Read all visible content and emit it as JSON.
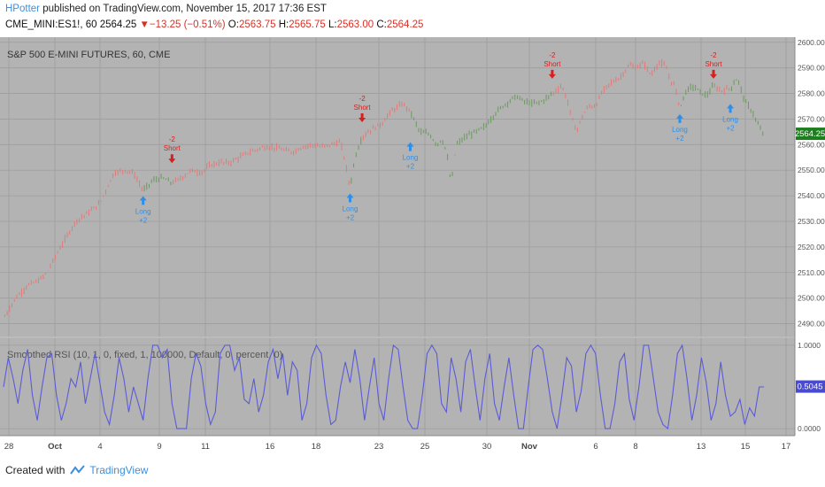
{
  "header": {
    "author": "HPotter",
    "published_text": "published on TradingView.com, November 15, 2017 17:36 EST",
    "symbol": "CME_MINI:ES1!, 60",
    "last": "2564.25",
    "change": "▼−13.25 (−0.51%)",
    "open_label": "O:",
    "open": "2563.75",
    "high_label": "H:",
    "high": "2565.75",
    "low_label": "L:",
    "low": "2563.00",
    "close_label": "C:",
    "close": "2564.25"
  },
  "footer": {
    "created_with": "Created with",
    "brand": "TradingView"
  },
  "colors": {
    "pane_bg": "#b3b3b3",
    "grid": "#9e9e9e",
    "up_candle": "#6a9a5e",
    "down_candle": "#e07a78",
    "rsi_line": "#5b5bd6",
    "long_arrow": "#2f8fe8",
    "short_arrow": "#d42020",
    "last_price_bg": "#1e7d1e",
    "rsi_label_bg": "#4b4bd0"
  },
  "chart_data": [
    {
      "type": "candlestick",
      "title": "S&P 500 E-MINI FUTURES, 60, CME",
      "ylim": [
        2485,
        2602
      ],
      "yticks": [
        "2490.00",
        "2500.00",
        "2510.00",
        "2520.00",
        "2530.00",
        "2540.00",
        "2550.00",
        "2560.00",
        "2570.00",
        "2580.00",
        "2590.00",
        "2600.00"
      ],
      "x_labels": [
        "28",
        "Oct",
        "4",
        "9",
        "11",
        "16",
        "18",
        "23",
        "25",
        "30",
        "Nov",
        "6",
        "8",
        "13",
        "15",
        "17"
      ],
      "last_price_label": "2564.25",
      "series_path": [
        [
          0,
          2492
        ],
        [
          5,
          2500
        ],
        [
          10,
          2505
        ],
        [
          15,
          2507
        ],
        [
          18,
          2510
        ],
        [
          22,
          2517
        ],
        [
          25,
          2522
        ],
        [
          30,
          2530
        ],
        [
          36,
          2534
        ],
        [
          40,
          2537
        ],
        [
          46,
          2549
        ],
        [
          50,
          2550
        ],
        [
          54,
          2549
        ],
        [
          58,
          2542
        ],
        [
          62,
          2546
        ],
        [
          66,
          2547
        ],
        [
          70,
          2545
        ],
        [
          74,
          2547
        ],
        [
          78,
          2550
        ],
        [
          82,
          2549
        ],
        [
          86,
          2552
        ],
        [
          90,
          2553
        ],
        [
          94,
          2553
        ],
        [
          98,
          2555
        ],
        [
          102,
          2557
        ],
        [
          108,
          2559
        ],
        [
          112,
          2559
        ],
        [
          116,
          2558
        ],
        [
          120,
          2557
        ],
        [
          124,
          2559
        ],
        [
          128,
          2560
        ],
        [
          132,
          2559
        ],
        [
          136,
          2560
        ],
        [
          140,
          2561
        ],
        [
          142,
          2553
        ],
        [
          144,
          2543
        ],
        [
          146,
          2555
        ],
        [
          149,
          2563
        ],
        [
          153,
          2566
        ],
        [
          157,
          2568
        ],
        [
          161,
          2573
        ],
        [
          166,
          2576
        ],
        [
          169,
          2573
        ],
        [
          173,
          2565
        ],
        [
          177,
          2564
        ],
        [
          180,
          2560
        ],
        [
          182,
          2562
        ],
        [
          184,
          2558
        ],
        [
          186,
          2544
        ],
        [
          188,
          2560
        ],
        [
          192,
          2563
        ],
        [
          196,
          2565
        ],
        [
          200,
          2567
        ],
        [
          205,
          2573
        ],
        [
          210,
          2577
        ],
        [
          213,
          2579
        ],
        [
          216,
          2577
        ],
        [
          220,
          2576
        ],
        [
          224,
          2577
        ],
        [
          228,
          2580
        ],
        [
          232,
          2583
        ],
        [
          234,
          2578
        ],
        [
          236,
          2571
        ],
        [
          238,
          2565
        ],
        [
          240,
          2570
        ],
        [
          243,
          2575
        ],
        [
          246,
          2575
        ],
        [
          249,
          2581
        ],
        [
          252,
          2584
        ],
        [
          256,
          2586
        ],
        [
          260,
          2591
        ],
        [
          263,
          2590
        ],
        [
          266,
          2592
        ],
        [
          269,
          2587
        ],
        [
          272,
          2592
        ],
        [
          275,
          2591
        ],
        [
          277,
          2585
        ],
        [
          279,
          2583
        ],
        [
          281,
          2574
        ],
        [
          283,
          2580
        ],
        [
          286,
          2583
        ],
        [
          289,
          2581
        ],
        [
          292,
          2579
        ],
        [
          295,
          2583
        ],
        [
          298,
          2581
        ],
        [
          302,
          2582
        ],
        [
          305,
          2586
        ],
        [
          308,
          2577
        ],
        [
          311,
          2573
        ],
        [
          314,
          2567
        ],
        [
          316,
          2563
        ]
      ],
      "signals": [
        {
          "type": "long",
          "text": [
            "Long",
            "+2"
          ],
          "x": 58,
          "y": 2542
        },
        {
          "type": "short",
          "text": [
            "-2",
            "Short"
          ],
          "x": 70,
          "y": 2550
        },
        {
          "type": "long",
          "text": [
            "Long",
            "+2"
          ],
          "x": 144,
          "y": 2543
        },
        {
          "type": "short",
          "text": [
            "-2",
            "Short"
          ],
          "x": 149,
          "y": 2566
        },
        {
          "type": "long",
          "text": [
            "Long",
            "+2"
          ],
          "x": 169,
          "y": 2563
        },
        {
          "type": "short",
          "text": [
            "-2",
            "Short"
          ],
          "x": 228,
          "y": 2583
        },
        {
          "type": "long",
          "text": [
            "Long",
            "+2"
          ],
          "x": 281,
          "y": 2574
        },
        {
          "type": "short",
          "text": [
            "-2",
            "Short"
          ],
          "x": 295,
          "y": 2583
        },
        {
          "type": "long",
          "text": [
            "Long",
            "+2"
          ],
          "x": 302,
          "y": 2578
        }
      ]
    },
    {
      "type": "line",
      "title": "Smoothed RSI (10, 1, 0, fixed, 1, 100000, Default, 0, percent, 0)",
      "ylim": [
        -0.02,
        1.02
      ],
      "yticks": [
        "1.0000",
        "0.0000"
      ],
      "last_value_label": "0.5045",
      "values": [
        0.5,
        0.85,
        0.6,
        0.3,
        0.7,
        0.95,
        0.4,
        0.1,
        0.5,
        0.85,
        0.9,
        0.4,
        0.1,
        0.3,
        0.6,
        0.5,
        0.8,
        0.3,
        0.6,
        0.9,
        0.55,
        0.2,
        0.05,
        0.4,
        0.85,
        0.6,
        0.2,
        0.5,
        0.3,
        0.1,
        0.6,
        1.0,
        1.0,
        0.85,
        0.95,
        0.3,
        0.0,
        0.0,
        0.0,
        0.6,
        0.9,
        0.75,
        0.3,
        0.05,
        0.2,
        0.9,
        1.0,
        1.0,
        0.7,
        0.85,
        0.35,
        0.3,
        0.6,
        0.2,
        0.4,
        0.8,
        0.95,
        0.6,
        0.9,
        0.4,
        0.8,
        0.7,
        0.1,
        0.3,
        0.85,
        1.0,
        0.9,
        0.4,
        0.05,
        0.1,
        0.5,
        0.8,
        0.55,
        0.95,
        0.6,
        0.1,
        0.5,
        0.85,
        0.3,
        0.1,
        0.6,
        1.0,
        0.95,
        0.5,
        0.1,
        0.0,
        0.0,
        0.4,
        0.9,
        1.0,
        0.9,
        0.3,
        0.2,
        0.85,
        0.6,
        0.2,
        0.8,
        0.95,
        0.5,
        0.1,
        0.6,
        0.9,
        0.3,
        0.1,
        0.5,
        0.85,
        0.4,
        0.0,
        0.0,
        0.5,
        0.95,
        1.0,
        0.95,
        0.6,
        0.2,
        0.0,
        0.4,
        0.85,
        0.75,
        0.2,
        0.45,
        0.9,
        1.0,
        0.9,
        0.4,
        0.0,
        0.0,
        0.3,
        0.8,
        0.9,
        0.35,
        0.1,
        0.5,
        1.0,
        1.0,
        0.6,
        0.2,
        0.05,
        0.0,
        0.4,
        0.9,
        1.0,
        0.6,
        0.1,
        0.4,
        0.85,
        0.55,
        0.1,
        0.3,
        0.8,
        0.4,
        0.15,
        0.2,
        0.35,
        0.05,
        0.25,
        0.15,
        0.5,
        0.5
      ]
    }
  ]
}
